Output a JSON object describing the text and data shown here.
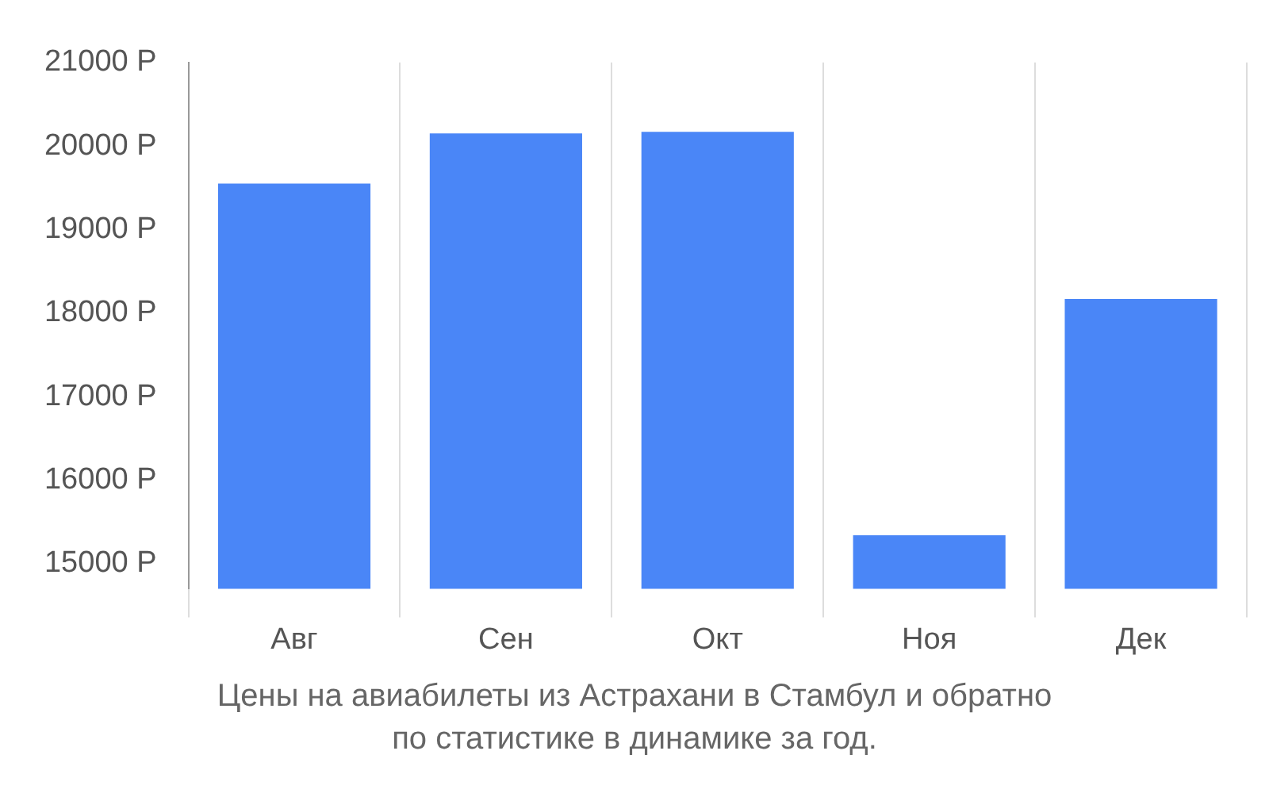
{
  "chart_data": {
    "type": "bar",
    "categories": [
      "Авг",
      "Сен",
      "Окт",
      "Ноя",
      "Дек"
    ],
    "values": [
      19550,
      20150,
      20170,
      15340,
      18170
    ],
    "color": "#4a86f7",
    "ylim": [
      14700,
      21000
    ],
    "yticks": [
      {
        "value": 15000,
        "label": "15000 Р"
      },
      {
        "value": 16000,
        "label": "16000 Р"
      },
      {
        "value": 17000,
        "label": "17000 Р"
      },
      {
        "value": 18000,
        "label": "18000 Р"
      },
      {
        "value": 19000,
        "label": "19000 Р"
      },
      {
        "value": 20000,
        "label": "20000 Р"
      },
      {
        "value": 21000,
        "label": "21000 Р"
      }
    ],
    "grid": "x",
    "annotations": [
      "Цены на авиабилеты из Астрахани в Стамбул и обратно",
      "по статистике в динамике за год."
    ]
  }
}
